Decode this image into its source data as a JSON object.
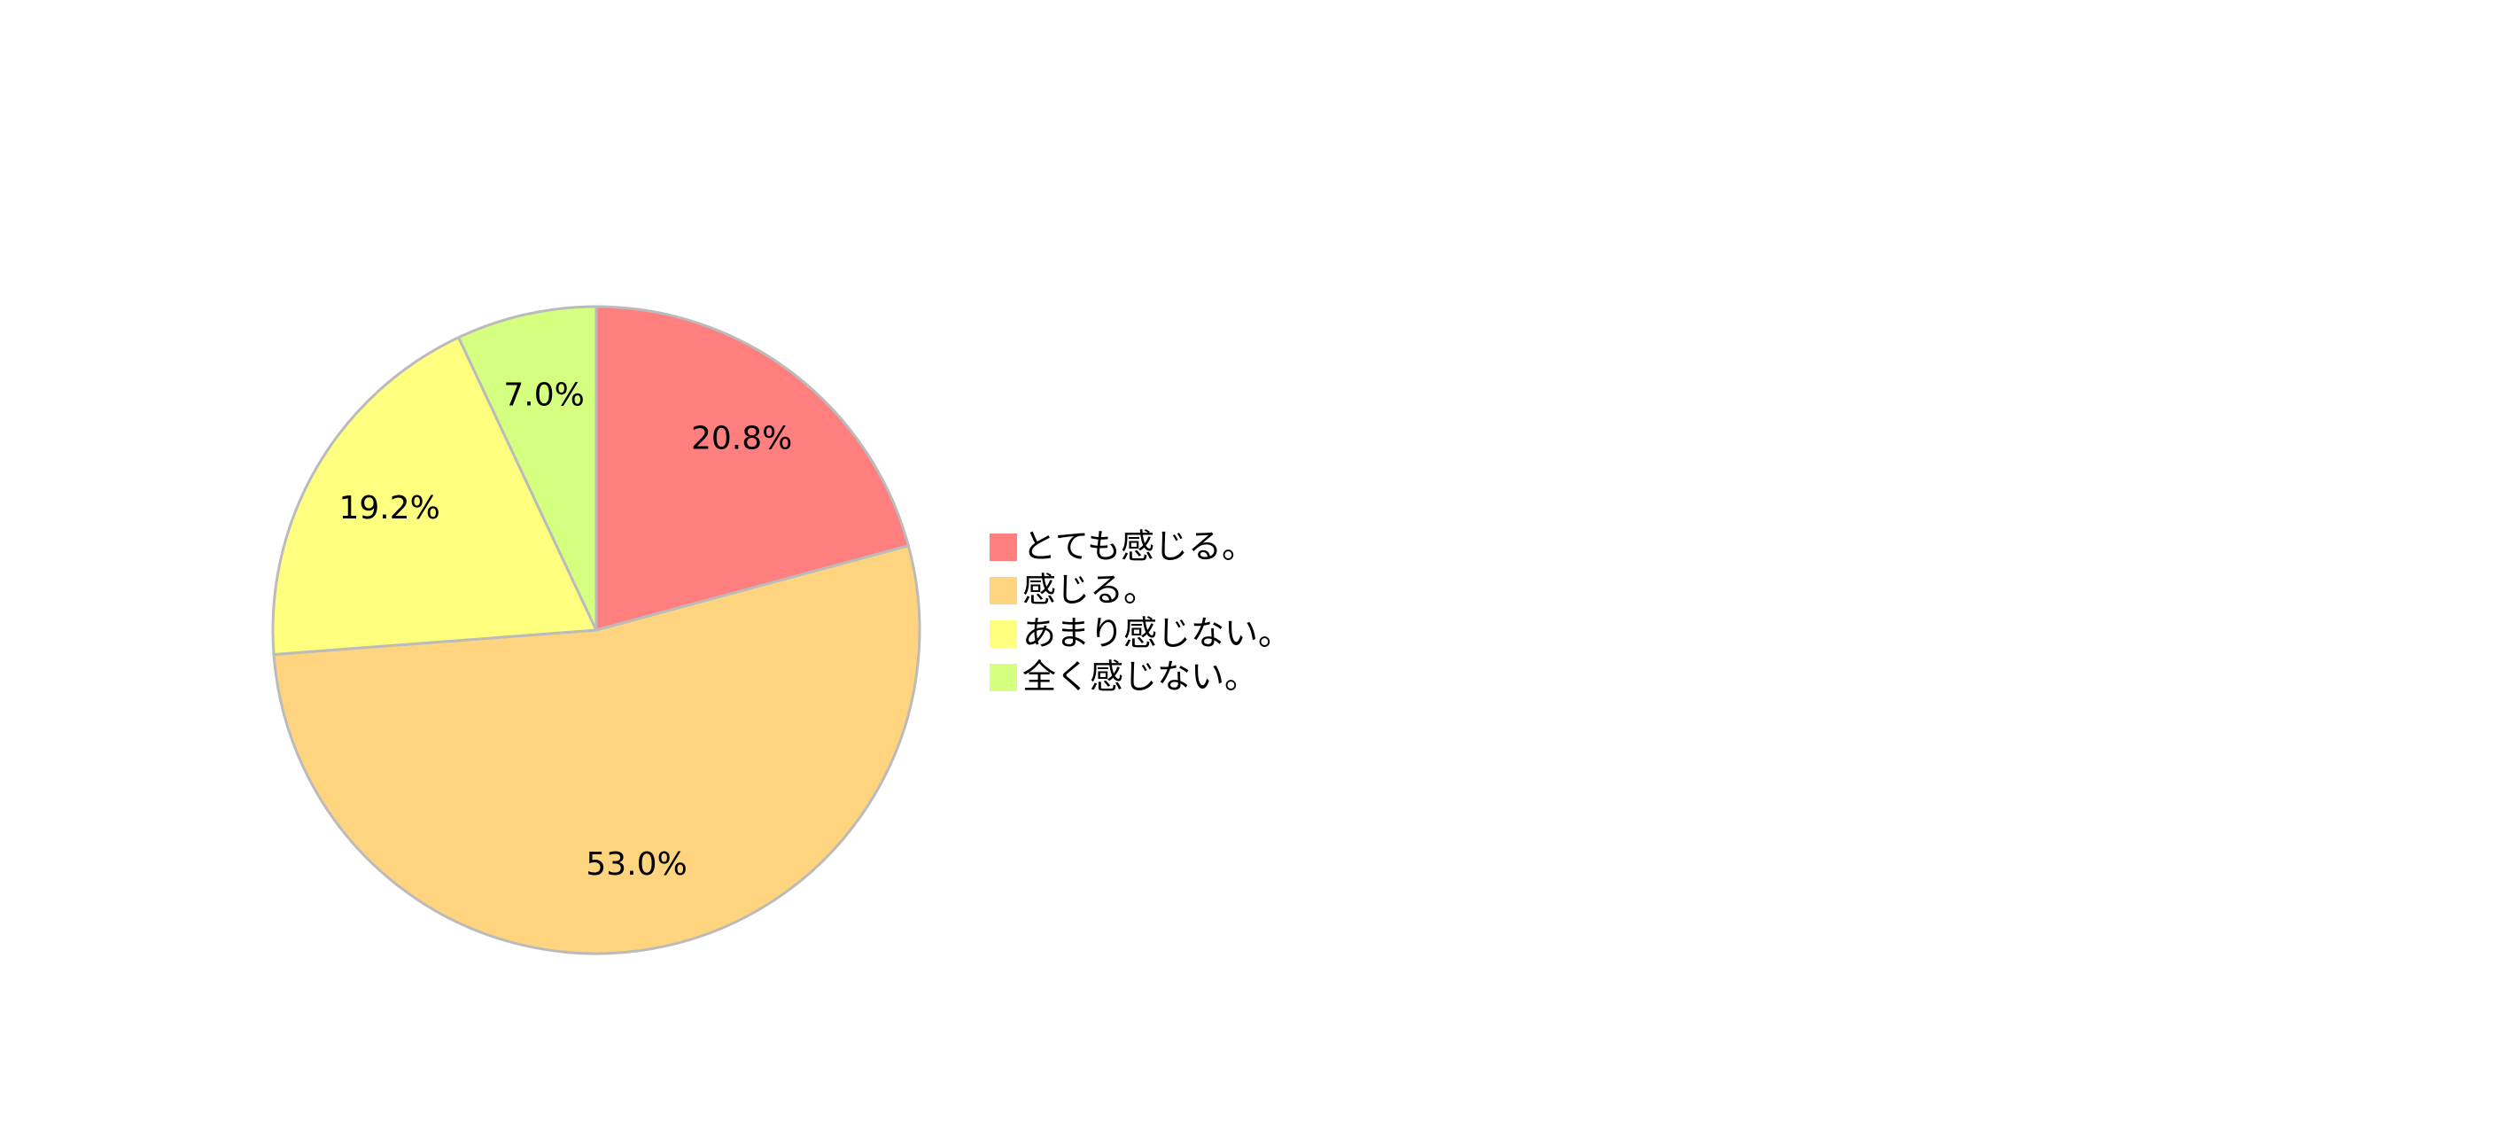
{
  "chart_data": {
    "type": "pie",
    "categories": [
      "とても感じる。",
      "感じる。",
      "あまり感じない。",
      "全く感じない。"
    ],
    "values": [
      20.8,
      53.0,
      19.2,
      7.0
    ],
    "value_labels": [
      "20.8%",
      "53.0%",
      "19.2%",
      "7.0%"
    ],
    "colors": [
      "#ff7f7f",
      "#ffd47f",
      "#ffff7f",
      "#d4ff7f"
    ],
    "legend": "right"
  }
}
